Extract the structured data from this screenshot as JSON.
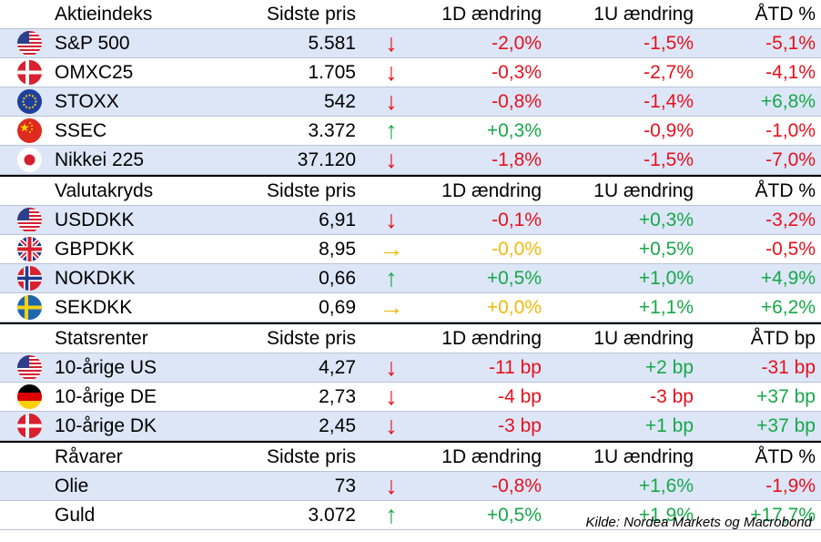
{
  "colors": {
    "negative": "#e8101e",
    "positive": "#17a84a",
    "neutral": "#f2b90a",
    "row_shade": "#dce6f6"
  },
  "sections": [
    {
      "header": {
        "title": "Aktieindeks",
        "price": "Sidste pris",
        "d1": "1D ændring",
        "w1": "1U ændring",
        "ytd": "ÅTD %"
      },
      "rows": [
        {
          "flag": "us-flag-icon",
          "name": "S&P 500",
          "price": "5.581",
          "arrow": "↓",
          "trend": "down",
          "d1": "-2,0%",
          "w1": "-1,5%",
          "ytd": "-5,1%"
        },
        {
          "flag": "dk-flag-icon",
          "name": "OMXC25",
          "price": "1.705",
          "arrow": "↓",
          "trend": "down",
          "d1": "-0,3%",
          "w1": "-2,7%",
          "ytd": "-4,1%"
        },
        {
          "flag": "eu-flag-icon",
          "name": "STOXX",
          "price": "542",
          "arrow": "↓",
          "trend": "down",
          "d1": "-0,8%",
          "w1": "-1,4%",
          "ytd": "+6,8%"
        },
        {
          "flag": "cn-flag-icon",
          "name": "SSEC",
          "price": "3.372",
          "arrow": "↑",
          "trend": "up",
          "d1": "+0,3%",
          "w1": "-0,9%",
          "ytd": "-1,0%"
        },
        {
          "flag": "jp-flag-icon",
          "name": "Nikkei 225",
          "price": "37.120",
          "arrow": "↓",
          "trend": "down",
          "d1": "-1,8%",
          "w1": "-1,5%",
          "ytd": "-7,0%"
        }
      ]
    },
    {
      "header": {
        "title": "Valutakryds",
        "price": "Sidste pris",
        "d1": "1D ændring",
        "w1": "1U ændring",
        "ytd": "ÅTD %"
      },
      "rows": [
        {
          "flag": "us-flag-icon",
          "name": "USDDKK",
          "price": "6,91",
          "arrow": "↓",
          "trend": "down",
          "d1": "-0,1%",
          "w1": "+0,3%",
          "ytd": "-3,2%"
        },
        {
          "flag": "gb-flag-icon",
          "name": "GBPDKK",
          "price": "8,95",
          "arrow": "→",
          "trend": "flat",
          "d1": "-0,0%",
          "w1": "+0,5%",
          "ytd": "-0,5%"
        },
        {
          "flag": "no-flag-icon",
          "name": "NOKDKK",
          "price": "0,66",
          "arrow": "↑",
          "trend": "up",
          "d1": "+0,5%",
          "w1": "+1,0%",
          "ytd": "+4,9%"
        },
        {
          "flag": "se-flag-icon",
          "name": "SEKDKK",
          "price": "0,69",
          "arrow": "→",
          "trend": "flat",
          "d1": "+0,0%",
          "w1": "+1,1%",
          "ytd": "+6,2%"
        }
      ]
    },
    {
      "header": {
        "title": "Statsrenter",
        "price": "Sidste pris",
        "d1": "1D ændring",
        "w1": "1U ændring",
        "ytd": "ÅTD bp"
      },
      "rows": [
        {
          "flag": "us-flag-icon",
          "name": "10-årige US",
          "price": "4,27",
          "arrow": "↓",
          "trend": "down",
          "d1": "-11 bp",
          "w1": "+2 bp",
          "ytd": "-31 bp"
        },
        {
          "flag": "de-flag-icon",
          "name": "10-årige DE",
          "price": "2,73",
          "arrow": "↓",
          "trend": "down",
          "d1": "-4 bp",
          "w1": "-3 bp",
          "ytd": "+37 bp"
        },
        {
          "flag": "dk-flag-icon",
          "name": "10-årige DK",
          "price": "2,45",
          "arrow": "↓",
          "trend": "down",
          "d1": "-3 bp",
          "w1": "+1 bp",
          "ytd": "+37 bp"
        }
      ]
    },
    {
      "header": {
        "title": "Råvarer",
        "price": "Sidste pris",
        "d1": "1D ændring",
        "w1": "1U ændring",
        "ytd": "ÅTD %"
      },
      "rows": [
        {
          "flag": "",
          "name": "Olie",
          "price": "73",
          "arrow": "↓",
          "trend": "down",
          "d1": "-0,8%",
          "w1": "+1,6%",
          "ytd": "-1,9%"
        },
        {
          "flag": "",
          "name": "Guld",
          "price": "3.072",
          "arrow": "↑",
          "trend": "up",
          "d1": "+0,5%",
          "w1": "+1,9%",
          "ytd": "+17,7%"
        }
      ]
    }
  ],
  "source": "Kilde: Nordea Markets og Macrobond"
}
